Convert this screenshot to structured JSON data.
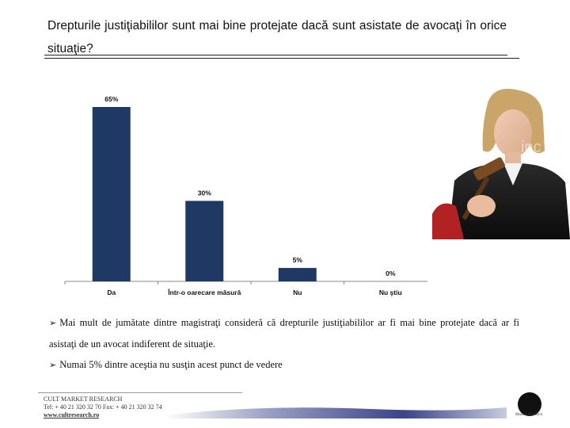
{
  "slide": {
    "title": "Drepturile justiţiabililor sunt mai bine protejate dacă sunt asistate de avocaţi în orice situaţie?",
    "bullets": [
      "Mai mult de jumătate dintre magistraţi consideră că drepturile justiţiabililor ar fi mai bine protejate dacă ar fi asistaţi de un avocat indiferent de situaţie.",
      "Numai 5% dintre aceştia nu susţin acest punct de vedere"
    ],
    "bullet_icon": "arrow-right-icon"
  },
  "footer": {
    "company": "CULT MARKET RESEARCH",
    "contact": "Tel: + 40 21 320 32 70  Fax: + 40 21 320 32 74",
    "website": "www.cultresearch.ro",
    "logo_icon": "cult-logo-icon",
    "logo_caption": "Market Research"
  },
  "colors": {
    "bar": "#1f3864",
    "text": "#111111"
  },
  "chart_data": {
    "type": "bar",
    "categories": [
      "Da",
      "Într-o oarecare măsură",
      "Nu",
      "Nu ştiu"
    ],
    "values": [
      65,
      30,
      5,
      0
    ],
    "value_labels": [
      "65%",
      "30%",
      "5%",
      "0%"
    ],
    "ylim": [
      0,
      65
    ],
    "grid": false,
    "legend": "none"
  }
}
